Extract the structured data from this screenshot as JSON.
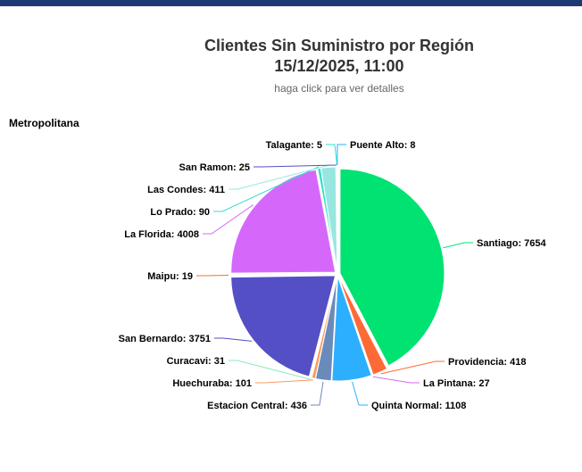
{
  "header": {
    "title_line1": "Clientes Sin Suministro por Región",
    "title_line2": "15/12/2025, 11:00",
    "subtitle": "haga click para ver detalles",
    "region_label": "Metropolitana",
    "accent_color": "#1f3a73"
  },
  "chart_data": {
    "type": "pie",
    "title": "Clientes Sin Suministro por Región",
    "subtitle": "haga click para ver detalles",
    "slices": [
      {
        "name": "Santiago",
        "value": 7654,
        "color": "#00e272"
      },
      {
        "name": "Providencia",
        "value": 418,
        "color": "#fe6a35"
      },
      {
        "name": "La Pintana",
        "value": 27,
        "color": "#d568fb"
      },
      {
        "name": "Quinta Normal",
        "value": 1108,
        "color": "#2caffe"
      },
      {
        "name": "Estacion Central",
        "value": 436,
        "color": "#6b8abc"
      },
      {
        "name": "Huechuraba",
        "value": 101,
        "color": "#fa9a5d"
      },
      {
        "name": "Curacavi",
        "value": 31,
        "color": "#90e6c4"
      },
      {
        "name": "San Bernardo",
        "value": 3751,
        "color": "#544fc5"
      },
      {
        "name": "Maipu",
        "value": 19,
        "color": "#fe6a35"
      },
      {
        "name": "La Florida",
        "value": 4008,
        "color": "#d568fb"
      },
      {
        "name": "Lo Prado",
        "value": 90,
        "color": "#2ee0ca"
      },
      {
        "name": "Las Condes",
        "value": 411,
        "color": "#98e6e0"
      },
      {
        "name": "San Ramon",
        "value": 25,
        "color": "#544fc5"
      },
      {
        "name": "Talagante",
        "value": 5,
        "color": "#2ee0ca"
      },
      {
        "name": "Puente Alto",
        "value": 8,
        "color": "#2caffe"
      }
    ]
  }
}
